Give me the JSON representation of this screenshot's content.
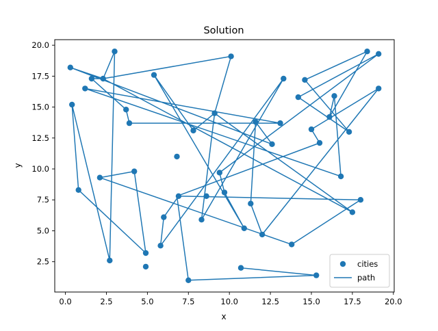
{
  "chart_data": {
    "type": "line",
    "title": "Solution",
    "xlabel": "x",
    "ylabel": "y",
    "xlim": [
      -0.65,
      20.05
    ],
    "ylim": [
      0.05,
      20.45
    ],
    "xticks": [
      0.0,
      2.5,
      5.0,
      7.5,
      10.0,
      12.5,
      15.0,
      17.5,
      20.0
    ],
    "xtick_labels": [
      "0.0",
      "2.5",
      "5.0",
      "7.5",
      "10.0",
      "12.5",
      "15.0",
      "17.5",
      "20.0"
    ],
    "yticks": [
      2.5,
      5.0,
      7.5,
      10.0,
      12.5,
      15.0,
      17.5,
      20.0
    ],
    "ytick_labels": [
      "2.5",
      "5.0",
      "7.5",
      "10.0",
      "12.5",
      "15.0",
      "17.5",
      "20.0"
    ],
    "grid": false,
    "legend_position": "lower right",
    "series": [
      {
        "name": "cities",
        "kind": "scatter",
        "color": "#1f77b4",
        "x": [
          0.4,
          0.3,
          1.2,
          1.6,
          2.3,
          3.0,
          3.7,
          3.9,
          5.4,
          7.8,
          9.1,
          10.1,
          13.1,
          13.3,
          12.6,
          11.6,
          14.2,
          14.6,
          15.0,
          15.5,
          16.1,
          16.4,
          16.8,
          17.3,
          18.4,
          19.1,
          19.1,
          17.5,
          18.0,
          13.8,
          12.0,
          11.3,
          10.9,
          9.7,
          9.4,
          8.6,
          8.3,
          6.9,
          6.8,
          6.0,
          5.8,
          4.9,
          4.9,
          4.2,
          2.1,
          0.8,
          2.7,
          7.5,
          10.7,
          15.3
        ],
        "y": [
          15.2,
          18.2,
          16.5,
          17.3,
          17.3,
          19.5,
          14.8,
          13.7,
          17.6,
          13.1,
          14.5,
          19.1,
          13.7,
          17.3,
          12.0,
          13.8,
          15.8,
          17.2,
          13.2,
          12.1,
          14.2,
          15.9,
          9.4,
          13.0,
          19.5,
          19.3,
          16.5,
          6.5,
          7.5,
          3.9,
          4.7,
          7.2,
          5.2,
          8.1,
          9.7,
          7.8,
          5.9,
          7.8,
          11.0,
          6.1,
          3.8,
          3.2,
          2.1,
          9.8,
          9.3,
          8.3,
          2.6,
          1.0,
          2.0,
          1.4
        ]
      },
      {
        "name": "path",
        "kind": "line",
        "color": "#1f77b4",
        "x": [
          10.7,
          15.3,
          7.5,
          6.8,
          15.5,
          15.0,
          19.1,
          12.0,
          11.3,
          11.6,
          12.6,
          0.3,
          2.3,
          17.5,
          9.1,
          8.3,
          13.3,
          5.8,
          6.0,
          6.9,
          18.0,
          13.8,
          2.1,
          4.2,
          4.9,
          0.8,
          0.4,
          2.7,
          3.0,
          2.3,
          1.6,
          3.7,
          3.9,
          13.1,
          1.2,
          16.8,
          16.4,
          16.1,
          18.4,
          14.6,
          17.3,
          14.2,
          19.1,
          9.4,
          9.7,
          10.9,
          5.4,
          7.8,
          9.1,
          10.1,
          2.3
        ],
        "y": [
          2.0,
          1.4,
          1.0,
          7.8,
          12.1,
          13.2,
          16.5,
          4.7,
          7.2,
          13.8,
          12.0,
          18.2,
          17.3,
          6.5,
          14.5,
          5.9,
          17.3,
          3.8,
          6.1,
          7.8,
          7.5,
          3.9,
          9.3,
          9.8,
          3.2,
          8.3,
          15.2,
          2.6,
          19.5,
          17.3,
          17.3,
          14.8,
          13.7,
          13.7,
          16.5,
          9.4,
          15.9,
          14.2,
          19.5,
          17.2,
          13.0,
          15.8,
          19.3,
          9.7,
          8.1,
          5.2,
          17.6,
          13.1,
          14.5,
          19.1,
          17.3
        ]
      }
    ]
  }
}
